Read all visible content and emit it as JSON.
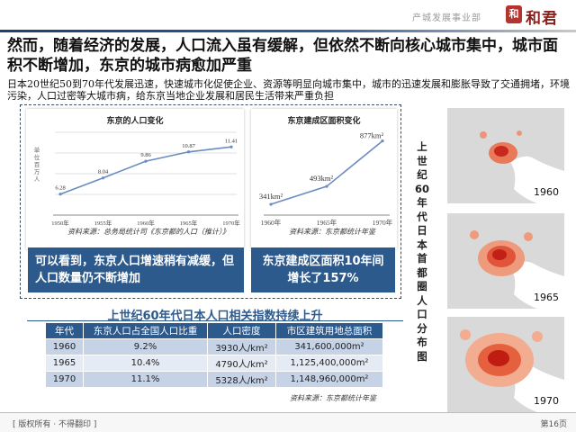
{
  "header": {
    "department": "产城发展事业部",
    "logo_seal": "和",
    "logo_text": "和君"
  },
  "headline": "然而，随着经济的发展，人口流入虽有缓解，但依然不断向核心城市集中，城市面积不断增加，东京的城市病愈加严重",
  "subtext": "日本20世纪50到70年代发展迅速，快速城市化促使企业、资源等明显向城市集中，城市的迅速发展和膨胀导致了交通拥堵，环境污染，人口过密等大城市病，给东京当地企业发展和居民生活带来严重负担",
  "chart_data": [
    {
      "type": "line",
      "title": "东京的人口变化",
      "ylabel": "单位百万人",
      "x": [
        "1950年",
        "1955年",
        "1960年",
        "1965年",
        "1970年"
      ],
      "series": [
        {
          "values": [
            6.28,
            8.04,
            9.86,
            10.87,
            11.41
          ]
        }
      ],
      "ylim": [
        4,
        13
      ],
      "grid": true,
      "source": "资料来源：总务局统计司《东京都的人口（推计）》",
      "color": "#6a8cbf"
    },
    {
      "type": "line",
      "title": "东京建成区面积变化",
      "x": [
        "1960年",
        "1965年",
        "1970年"
      ],
      "series": [
        {
          "values": [
            341,
            493,
            877
          ],
          "labels": [
            "341km²",
            "493km²",
            "877km²"
          ]
        }
      ],
      "ylim": [
        250,
        950
      ],
      "grid": false,
      "source": "资料来源：东京都统计年鉴",
      "color": "#6a8cbf"
    }
  ],
  "callouts": {
    "left": "可以看到，东京人口增速稍有减缓，但人口数量仍不断增加",
    "right": "东京建成区面积10年间增长了157%"
  },
  "table": {
    "title": "上世纪60年代日本人口相关指数持续上升",
    "headers": [
      "年代",
      "东京人口占全国人口比重",
      "人口密度",
      "市区建筑用地总面积"
    ],
    "rows": [
      [
        "1960",
        "9.2%",
        "3930人/km²",
        "341,600,000m²"
      ],
      [
        "1965",
        "10.4%",
        "4790人/km²",
        "1,125,400,000m²"
      ],
      [
        "1970",
        "11.1%",
        "5328人/km²",
        "1,148,960,000m²"
      ]
    ],
    "source": "资料来源：东京都统计年鉴"
  },
  "maps": {
    "caption": "上世纪60年代日本首都圈人口分布图",
    "years": [
      "1960",
      "1965",
      "1970"
    ]
  },
  "footer": {
    "copyright": "[ 版权所有 · 不得翻印 ]",
    "page": "第16页"
  }
}
